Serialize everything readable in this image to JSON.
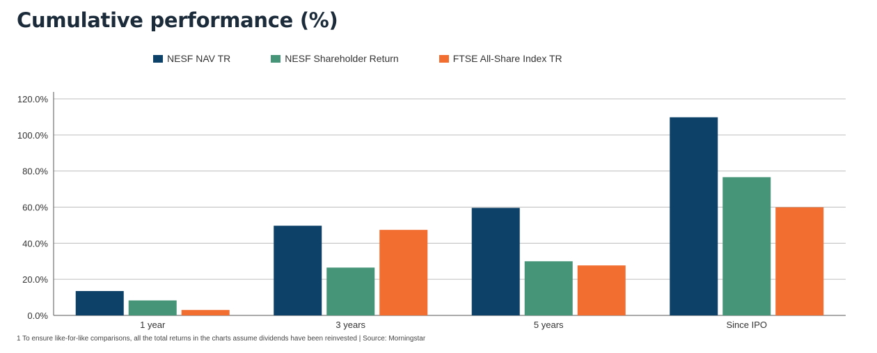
{
  "chart_data": {
    "type": "bar",
    "title": "Cumulative performance (%)",
    "categories": [
      "1 year",
      "3 years",
      "5 years",
      "Since IPO"
    ],
    "series": [
      {
        "name": "NESF NAV TR",
        "color": "#0d4168",
        "values": [
          13.5,
          49.7,
          59.6,
          109.8
        ]
      },
      {
        "name": "NESF Shareholder Return",
        "color": "#479579",
        "values": [
          8.3,
          26.5,
          30.0,
          76.6
        ]
      },
      {
        "name": "FTSE All-Share Index TR",
        "color": "#f26d30",
        "values": [
          3.0,
          47.4,
          27.7,
          59.9
        ]
      }
    ],
    "yticks": [
      "0.0%",
      "20.0%",
      "40.0%",
      "60.0%",
      "80.0%",
      "100.0%",
      "120.0%"
    ],
    "ylim": [
      0,
      120
    ],
    "grid": true,
    "legend": "top"
  },
  "footnote": "1 To ensure like-for-like comparisons, all the total returns in the charts assume dividends have been reinvested  |  Source: Morningstar"
}
